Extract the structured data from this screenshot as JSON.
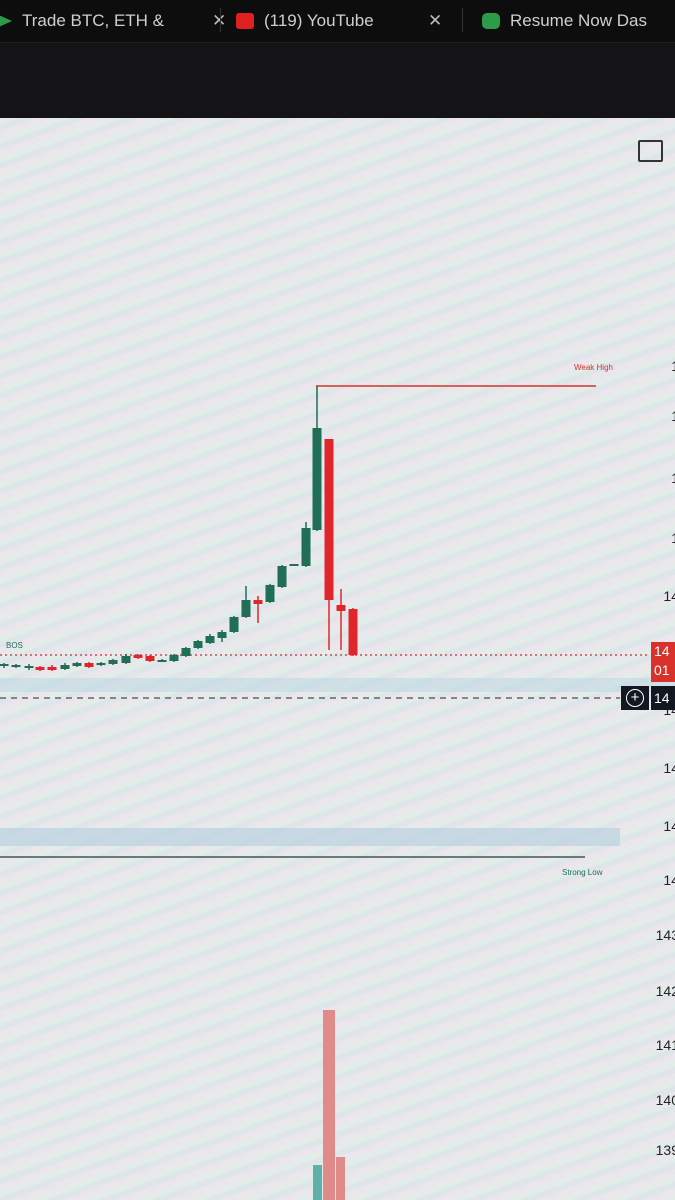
{
  "browser": {
    "tabs": [
      {
        "title": "Trade BTC, ETH &",
        "icon": "exchange-logo-icon",
        "color": "#2e9b4a"
      },
      {
        "title": "(119) YouTube",
        "icon": "youtube-icon",
        "color": "#e02020"
      },
      {
        "title": "Resume Now Das",
        "icon": "resume-now-icon",
        "color": "#2e9b4a"
      }
    ]
  },
  "chart": {
    "labels": {
      "weak_high": "Weak High",
      "strong_low": "Strong Low",
      "bos": "BOS"
    },
    "colors": {
      "bull": "#1f6e55",
      "bear": "#e0262a",
      "weak_high": "#d8322b",
      "strong_low": "#1f6e55"
    },
    "price_axis": [
      "1",
      "1",
      "1",
      "1",
      "14",
      "14",
      "14",
      "14",
      "14",
      "143",
      "142",
      "141",
      "140",
      "139"
    ],
    "last_price": {
      "line1": "14",
      "line2": "01"
    },
    "crosshair_price": "14"
  }
}
